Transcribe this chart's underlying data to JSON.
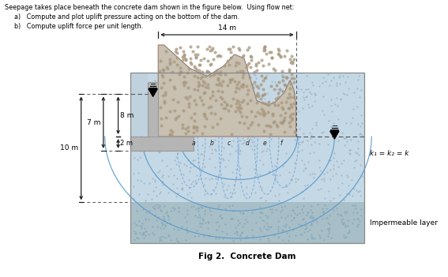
{
  "title": "Fig 2.  Concrete Dam",
  "header_line1": "Seepage takes place beneath the concrete dam shown in the figure below.  Using flow net:",
  "header_line2a": "a)   Compute and plot uplift pressure acting on the bottom of the dam.",
  "header_line2b": "b)   Compute uplift force per unit length.",
  "dim_14m": "14 m",
  "dim_7m": "7 m",
  "dim_8m": "8 m",
  "dim_2m": "2 m",
  "dim_10m": "10 m",
  "k_label": "k₁ = k₂ = k",
  "impermeable_label": "Impermeable layer",
  "labels_bottom": [
    "a",
    "b",
    "c",
    "d",
    "e",
    "f"
  ],
  "bg_color": "#ffffff",
  "soil_light": "#c5d8e5",
  "soil_mid": "#b8cdd8",
  "imperm_color": "#a8bfc8",
  "dam_gray": "#b5b5b5",
  "dam_dark": "#999999",
  "flow_blue": "#5599cc",
  "flow_blue_light": "#77aadd",
  "rock_color": "#c8c0b0",
  "rock_dot": "#a89880",
  "arrow_color": "#222222",
  "dash_color": "#555555",
  "water_marker_color": "#000000"
}
